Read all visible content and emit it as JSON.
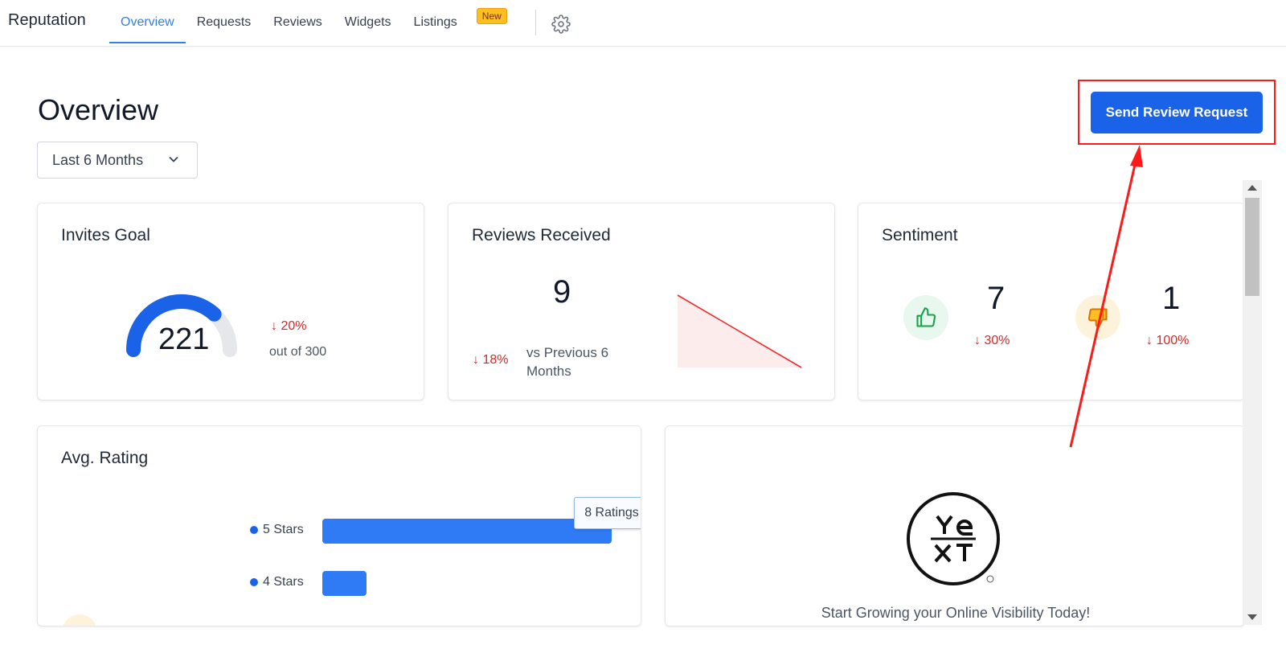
{
  "app": {
    "brand": "Reputation"
  },
  "nav": {
    "items": [
      {
        "label": "Overview",
        "active": true
      },
      {
        "label": "Requests",
        "active": false
      },
      {
        "label": "Reviews",
        "active": false
      },
      {
        "label": "Widgets",
        "active": false
      },
      {
        "label": "Listings",
        "active": false,
        "badge": "New"
      }
    ],
    "settings_icon": "gear-icon"
  },
  "page": {
    "title": "Overview",
    "range": "Last 6 Months",
    "cta": "Send Review Request"
  },
  "invites_goal": {
    "title": "Invites Goal",
    "value": "221",
    "goal": 300,
    "progress": 0.7367,
    "delta": "20%",
    "out_of": "out of 300"
  },
  "reviews_received": {
    "title": "Reviews Received",
    "value": "9",
    "delta": "18%",
    "comparison": "vs Previous 6 Months",
    "trend": "down"
  },
  "sentiment": {
    "title": "Sentiment",
    "positive": {
      "value": "7",
      "delta": "30%",
      "icon": "thumbs-up-icon"
    },
    "negative": {
      "value": "1",
      "delta": "100%",
      "icon": "thumbs-down-icon"
    }
  },
  "avg_rating": {
    "title": "Avg. Rating",
    "tooltip": "8 Ratings",
    "rows": [
      {
        "label": "5 Stars",
        "count": 8
      },
      {
        "label": "4 Stars",
        "count": 1
      }
    ]
  },
  "promo": {
    "logo_text": "YEXT",
    "text": "Start Growing your Online Visibility Today!"
  },
  "colors": {
    "accent": "#2f80ed",
    "primary_button": "#1a62e8",
    "negative": "#dc2626",
    "positive": "#16a34a",
    "highlight": "#ff1a1a"
  }
}
